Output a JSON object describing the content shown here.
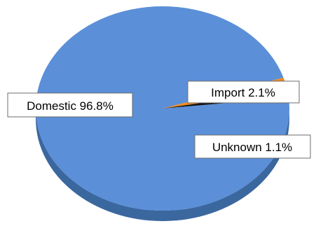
{
  "chart_data": {
    "type": "pie",
    "style": "3d",
    "slices": [
      {
        "label": "Domestic",
        "value": 96.8,
        "color": "#5b8fd8",
        "side_color": "#3b679f"
      },
      {
        "label": "Import",
        "value": 2.1,
        "color": "#f28a22",
        "side_color": "#b85f0d"
      },
      {
        "label": "Unknown",
        "value": 1.1,
        "color": "#111111",
        "side_color": "#000000"
      }
    ],
    "data_labels": [
      "Domestic 96.8%",
      "Import 2.1%",
      "Unknown 1.1%"
    ],
    "legend": "none"
  }
}
